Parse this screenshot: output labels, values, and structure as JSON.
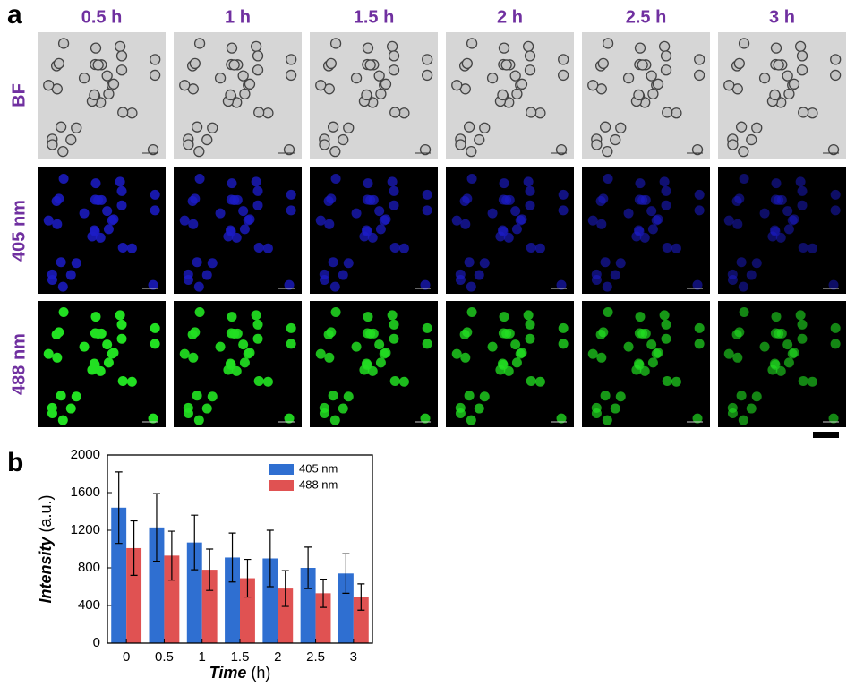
{
  "figure": {
    "panel_a_label": "a",
    "panel_b_label": "b",
    "columns": [
      "0.5 h",
      "1 h",
      "1.5 h",
      "2 h",
      "2.5 h",
      "3 h"
    ],
    "rows": [
      "BF",
      "405 nm",
      "488 nm"
    ]
  },
  "chart_data": {
    "type": "bar",
    "categories": [
      "0",
      "0.5",
      "1",
      "1.5",
      "2",
      "2.5",
      "3"
    ],
    "x_label": [
      "Time",
      "(h)"
    ],
    "y_label": [
      "Intensity",
      "(a.u.)"
    ],
    "ylim": [
      0,
      2000
    ],
    "yticks": [
      0,
      400,
      800,
      1200,
      1600,
      2000
    ],
    "legend": "top-right",
    "series": [
      {
        "name": "405 nm",
        "color": "#2f6fd1",
        "values": [
          1440,
          1230,
          1070,
          910,
          900,
          800,
          740
        ],
        "errors": [
          380,
          360,
          290,
          260,
          300,
          220,
          210
        ]
      },
      {
        "name": "488 nm",
        "color": "#e05252",
        "values": [
          1010,
          930,
          780,
          690,
          580,
          530,
          490
        ],
        "errors": [
          290,
          260,
          220,
          200,
          190,
          150,
          140
        ]
      }
    ]
  }
}
